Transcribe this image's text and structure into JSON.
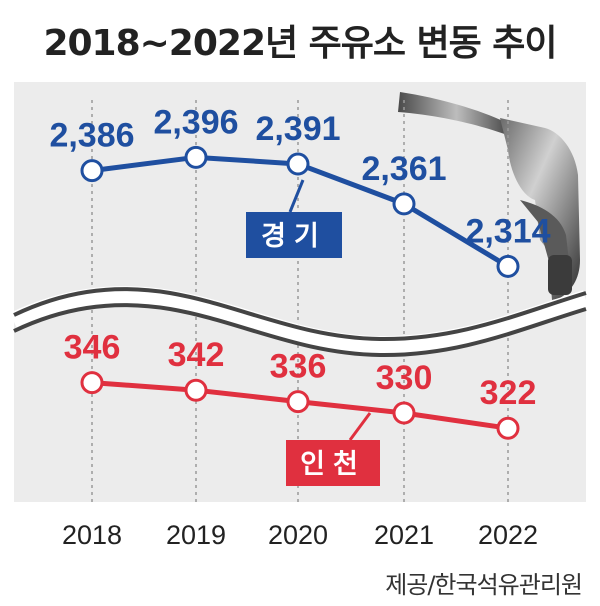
{
  "title": "2018~2022년 주유소 변동 추이",
  "source": "제공/한국석유관리원",
  "colors": {
    "gyeonggi": "#1f4fa0",
    "incheon": "#e0303f",
    "panel": "#ececec",
    "grid": "#9a9a9a",
    "axis_text": "#222222"
  },
  "chart_data": {
    "type": "line",
    "title": "2018~2022년 주유소 변동 추이",
    "categories": [
      "2018",
      "2019",
      "2020",
      "2021",
      "2022"
    ],
    "axis_break": true,
    "series": [
      {
        "name": "경기",
        "color": "#1f4fa0",
        "values": [
          2386,
          2396,
          2391,
          2361,
          2314
        ],
        "labels": [
          "2,386",
          "2,396",
          "2,391",
          "2,361",
          "2,314"
        ]
      },
      {
        "name": "인천",
        "color": "#e0303f",
        "values": [
          346,
          342,
          336,
          330,
          322
        ],
        "labels": [
          "346",
          "342",
          "336",
          "330",
          "322"
        ]
      }
    ]
  }
}
